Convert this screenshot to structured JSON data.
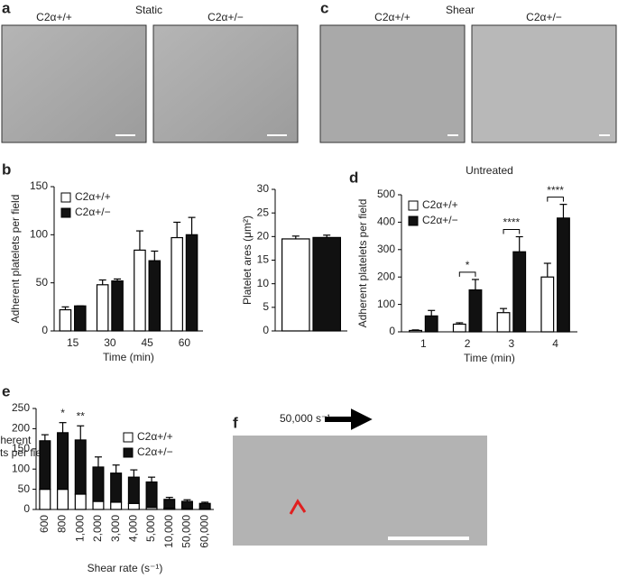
{
  "images": [
    {
      "panel_label": "a",
      "title": "Static",
      "labels": [
        "C2α+/+",
        "C2α+/−"
      ]
    },
    {
      "panel_label": "c",
      "title": "Shear",
      "labels": [
        "C2α+/+",
        "C2α+/−"
      ]
    },
    {
      "panel_label": "f",
      "annotation": "50,000 s⁻¹"
    }
  ],
  "chart_data": [
    {
      "type": "bar",
      "panel_label": "b",
      "ylabel": "Adherent platelets per field",
      "xlabel": "Time (min)",
      "categories": [
        "15",
        "30",
        "45",
        "60"
      ],
      "series": [
        {
          "name": "C2α+/+",
          "color": "#ffffff",
          "values": [
            22,
            48,
            84,
            97
          ],
          "errors": [
            3,
            5,
            20,
            16
          ]
        },
        {
          "name": "C2α+/−",
          "color": "#111111",
          "values": [
            26,
            52,
            73,
            100
          ],
          "errors": [
            0,
            2,
            10,
            18
          ]
        }
      ],
      "ylim": [
        0,
        150
      ],
      "yticks": [
        0,
        50,
        100,
        150
      ],
      "legend": "upper left"
    },
    {
      "type": "bar",
      "ylabel": "Platelet ares (μm²)",
      "categories": [
        null
      ],
      "series": [
        {
          "color": "#ffffff",
          "values": [
            19.5
          ],
          "errors": [
            0.6
          ]
        },
        {
          "color": "#111111",
          "values": [
            19.8
          ],
          "errors": [
            0.5
          ]
        }
      ],
      "ylim": [
        0,
        30
      ],
      "yticks": [
        0,
        5,
        10,
        15,
        20,
        25,
        30
      ]
    },
    {
      "type": "bar",
      "panel_label": "d",
      "title": "Untreated",
      "ylabel": "Adherent platelets per field",
      "xlabel": "Time (min)",
      "categories": [
        "1",
        "2",
        "3",
        "4"
      ],
      "series": [
        {
          "name": "C2α+/+",
          "color": "#ffffff",
          "values": [
            5,
            28,
            70,
            200
          ],
          "errors": [
            2,
            5,
            15,
            50
          ]
        },
        {
          "name": "C2α+/−",
          "color": "#111111",
          "values": [
            58,
            153,
            292,
            415
          ],
          "errors": [
            20,
            38,
            55,
            50
          ]
        }
      ],
      "significance": [
        null,
        "*",
        "****",
        "****"
      ],
      "ylim": [
        0,
        500
      ],
      "yticks": [
        0,
        100,
        200,
        300,
        400,
        500
      ],
      "legend": "upper left"
    },
    {
      "type": "bar",
      "stacked": true,
      "panel_label": "e",
      "ylabel": [
        "Adherent",
        "platelets per field"
      ],
      "xlabel": "Shear rate (s⁻¹)",
      "categories": [
        "600",
        "800",
        "1,000",
        "2,000",
        "3,000",
        "4,000",
        "5,000",
        "10,000",
        "50,000",
        "60,000"
      ],
      "series": [
        {
          "name": "C2α+/+",
          "color": "#ffffff",
          "values": [
            50,
            50,
            38,
            20,
            18,
            15,
            5,
            3,
            2,
            1
          ],
          "errors": [
            12,
            10,
            5,
            3,
            3,
            3,
            2,
            1,
            1,
            1
          ]
        },
        {
          "name": "C2α+/−",
          "color": "#111111",
          "values": [
            120,
            140,
            134,
            85,
            72,
            65,
            63,
            22,
            18,
            14
          ],
          "errors": [
            15,
            25,
            35,
            25,
            20,
            18,
            12,
            5,
            4,
            3
          ]
        }
      ],
      "significance": [
        null,
        "*",
        "**",
        null,
        null,
        null,
        null,
        null,
        null,
        null
      ],
      "ylim": [
        0,
        250
      ],
      "yticks": [
        0,
        50,
        100,
        150,
        200,
        250
      ],
      "legend": "upper right"
    }
  ]
}
